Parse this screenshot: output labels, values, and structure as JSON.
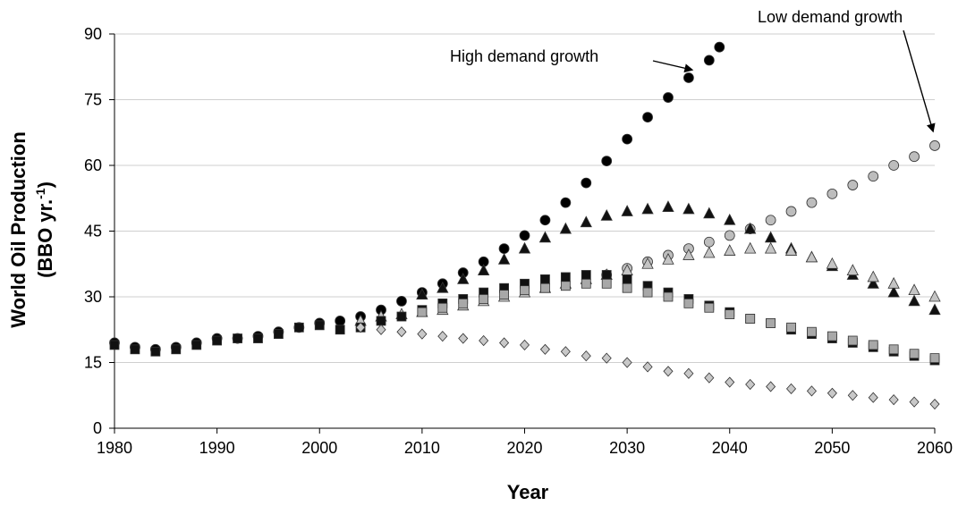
{
  "chart_data": {
    "type": "scatter",
    "title": "",
    "xlabel": "Year",
    "ylabel": "World Oil Production",
    "ylabel_unit": "(BBO yr.",
    "ylabel_unit_sup": "-1",
    "ylabel_unit_end": ")",
    "xlim": [
      1980,
      2060
    ],
    "ylim": [
      0,
      90
    ],
    "x_ticks": [
      1980,
      1990,
      2000,
      2010,
      2020,
      2030,
      2040,
      2050,
      2060
    ],
    "y_ticks": [
      0,
      15,
      30,
      45,
      60,
      75,
      90
    ],
    "x_tick_labels": [
      "1980",
      "1990",
      "2000",
      "2010",
      "2020",
      "2030",
      "2040",
      "2050",
      "2060"
    ],
    "y_tick_labels": [
      "0",
      "15",
      "30",
      "45",
      "60",
      "75",
      "90"
    ],
    "grid": "horizontal",
    "annotations": [
      {
        "text": "High demand growth",
        "points_to": [
          2037,
          81
        ]
      },
      {
        "text": "Low demand growth",
        "points_to": [
          2060,
          65
        ]
      }
    ],
    "colors": {
      "high_demand": "#000000",
      "low_demand": "#bdbdbd",
      "black_triangle": "#111111",
      "gray_triangle": "#c4c4c4",
      "black_square": "#111111",
      "gray_square": "#a8a8a8",
      "diamond": "#c8c8c8"
    },
    "series": [
      {
        "marker": "circle",
        "fill": "#000000",
        "x": [
          1980,
          1982,
          1984,
          1986,
          1988,
          1990,
          1992,
          1994,
          1996,
          1998,
          2000,
          2002,
          2004,
          2006,
          2008,
          2010,
          2012,
          2014,
          2016,
          2018,
          2020,
          2022,
          2024,
          2026,
          2028,
          2030,
          2032,
          2034,
          2036,
          2038,
          2039
        ],
        "y": [
          19.5,
          18.5,
          18.0,
          18.5,
          19.5,
          20.5,
          20.5,
          21.0,
          22.0,
          23.0,
          24.0,
          24.5,
          25.5,
          27.0,
          29.0,
          31.0,
          33.0,
          35.5,
          38.0,
          41.0,
          44.0,
          47.5,
          51.5,
          56.0,
          61.0,
          66.0,
          71.0,
          75.5,
          80.0,
          84.0,
          87.0
        ]
      },
      {
        "marker": "circle",
        "fill": "#bdbdbd",
        "x": [
          2028,
          2030,
          2032,
          2034,
          2036,
          2038,
          2040,
          2042,
          2044,
          2046,
          2048,
          2050,
          2052,
          2054,
          2056,
          2058,
          2060
        ],
        "y": [
          35.0,
          36.5,
          38.0,
          39.5,
          41.0,
          42.5,
          44.0,
          45.5,
          47.5,
          49.5,
          51.5,
          53.5,
          55.5,
          57.5,
          60.0,
          62.0,
          64.5
        ]
      },
      {
        "marker": "triangle",
        "fill": "#111111",
        "x": [
          2010,
          2012,
          2014,
          2016,
          2018,
          2020,
          2022,
          2024,
          2026,
          2028,
          2030,
          2032,
          2034,
          2036,
          2038,
          2040,
          2042,
          2044,
          2046,
          2048,
          2050,
          2052,
          2054,
          2056,
          2058,
          2060
        ],
        "y": [
          30.5,
          32.0,
          34.0,
          36.0,
          38.5,
          41.0,
          43.5,
          45.5,
          47.0,
          48.5,
          49.5,
          50.0,
          50.5,
          50.0,
          49.0,
          47.5,
          45.5,
          43.5,
          41.0,
          39.0,
          37.0,
          35.0,
          33.0,
          31.0,
          29.0,
          27.0
        ]
      },
      {
        "marker": "triangle",
        "fill": "#c4c4c4",
        "x": [
          2004,
          2006,
          2008,
          2010,
          2012,
          2014,
          2016,
          2018,
          2020,
          2022,
          2024,
          2026,
          2028,
          2030,
          2032,
          2034,
          2036,
          2038,
          2040,
          2042,
          2044,
          2046,
          2048,
          2050,
          2052,
          2054,
          2056,
          2058,
          2060
        ],
        "y": [
          24.5,
          25.5,
          26.0,
          26.5,
          27.0,
          28.0,
          29.0,
          30.0,
          31.0,
          32.0,
          33.0,
          34.0,
          35.0,
          36.0,
          37.5,
          38.5,
          39.5,
          40.0,
          40.5,
          41.0,
          41.0,
          40.5,
          39.0,
          37.5,
          36.0,
          34.5,
          33.0,
          31.5,
          30.0
        ]
      },
      {
        "marker": "square",
        "fill": "#111111",
        "x": [
          1980,
          1982,
          1984,
          1986,
          1988,
          1990,
          1992,
          1994,
          1996,
          1998,
          2000,
          2002,
          2004,
          2006,
          2008,
          2010,
          2012,
          2014,
          2016,
          2018,
          2020,
          2022,
          2024,
          2026,
          2028,
          2030,
          2032,
          2034,
          2036,
          2038,
          2040,
          2042,
          2044,
          2046,
          2048,
          2050,
          2052,
          2054,
          2056,
          2058,
          2060
        ],
        "y": [
          19.0,
          18.0,
          17.5,
          18.0,
          19.0,
          20.0,
          20.5,
          20.5,
          21.5,
          23.0,
          23.5,
          22.5,
          23.0,
          24.5,
          25.5,
          27.0,
          28.5,
          29.5,
          31.0,
          32.0,
          33.0,
          34.0,
          34.5,
          35.0,
          35.0,
          34.0,
          32.5,
          31.0,
          29.5,
          28.0,
          26.5,
          25.0,
          24.0,
          22.5,
          21.5,
          20.5,
          19.5,
          18.5,
          17.5,
          16.5,
          15.5
        ]
      },
      {
        "marker": "square",
        "fill": "#a8a8a8",
        "x": [
          2010,
          2012,
          2014,
          2016,
          2018,
          2020,
          2022,
          2024,
          2026,
          2028,
          2030,
          2032,
          2034,
          2036,
          2038,
          2040,
          2042,
          2044,
          2046,
          2048,
          2050,
          2052,
          2054,
          2056,
          2058,
          2060
        ],
        "y": [
          26.5,
          27.5,
          28.5,
          29.5,
          30.5,
          31.5,
          32.0,
          32.5,
          33.0,
          33.0,
          32.0,
          31.0,
          30.0,
          28.5,
          27.5,
          26.0,
          25.0,
          24.0,
          23.0,
          22.0,
          21.0,
          20.0,
          19.0,
          18.0,
          17.0,
          16.0
        ]
      },
      {
        "marker": "diamond",
        "fill": "#c8c8c8",
        "x": [
          2004,
          2006,
          2008,
          2010,
          2012,
          2014,
          2016,
          2018,
          2020,
          2022,
          2024,
          2026,
          2028,
          2030,
          2032,
          2034,
          2036,
          2038,
          2040,
          2042,
          2044,
          2046,
          2048,
          2050,
          2052,
          2054,
          2056,
          2058,
          2060
        ],
        "y": [
          23.0,
          22.5,
          22.0,
          21.5,
          21.0,
          20.5,
          20.0,
          19.5,
          19.0,
          18.0,
          17.5,
          16.5,
          16.0,
          15.0,
          14.0,
          13.0,
          12.5,
          11.5,
          10.5,
          10.0,
          9.5,
          9.0,
          8.5,
          8.0,
          7.5,
          7.0,
          6.5,
          6.0,
          5.5
        ]
      }
    ]
  }
}
